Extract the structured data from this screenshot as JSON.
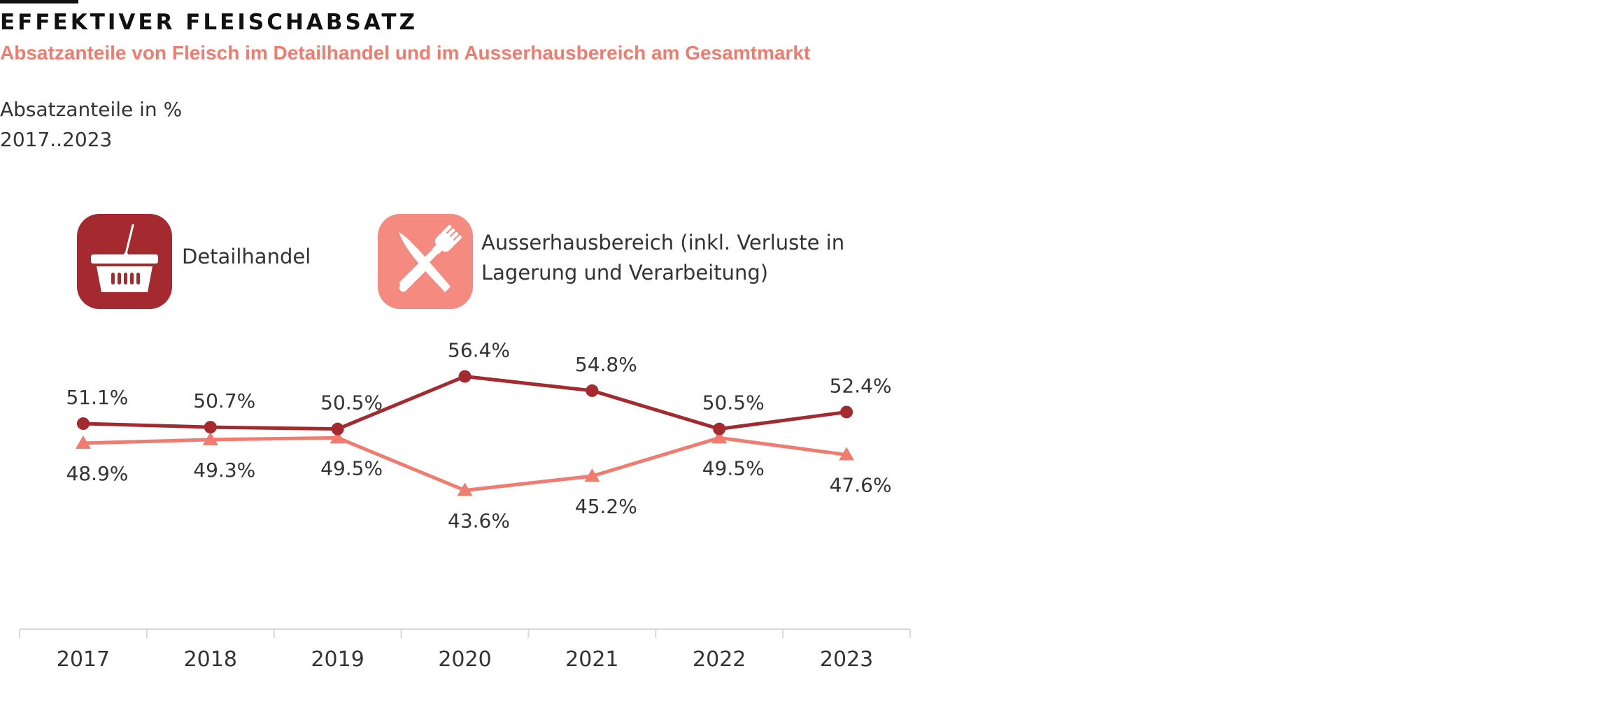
{
  "header": {
    "title": "EFFEKTIVER FLEISCHABSATZ",
    "subtitle": "Absatzanteile von Fleisch im Detailhandel und im Ausserhausbereich am Gesamtmarkt",
    "unit_line": "Absatzanteile in %",
    "range_line": "2017..2023"
  },
  "legend": {
    "items": [
      {
        "label": "Detailhandel",
        "icon": "shopping-basket-icon",
        "color": "#a52a2f"
      },
      {
        "label": "Ausserhausbereich (inkl. Verluste in Lagerung und Verarbeitung)",
        "icon": "knife-fork-icon",
        "color": "#f48a80"
      }
    ]
  },
  "chart_data": {
    "type": "line",
    "categories": [
      "2017",
      "2018",
      "2019",
      "2020",
      "2021",
      "2022",
      "2023"
    ],
    "series": [
      {
        "name": "Detailhandel",
        "values": [
          51.1,
          50.7,
          50.5,
          56.4,
          54.8,
          50.5,
          52.4
        ],
        "labels": [
          "51.1%",
          "50.7%",
          "50.5%",
          "56.4%",
          "54.8%",
          "50.5%",
          "52.4%"
        ],
        "color": "#a52a2f",
        "marker": "circle"
      },
      {
        "name": "Ausserhausbereich (inkl. Verluste in Lagerung und Verarbeitung)",
        "values": [
          48.9,
          49.3,
          49.5,
          43.6,
          45.2,
          49.5,
          47.6
        ],
        "labels": [
          "48.9%",
          "49.3%",
          "49.5%",
          "43.6%",
          "45.2%",
          "49.5%",
          "47.6%"
        ],
        "color": "#f07b6e",
        "marker": "triangle"
      }
    ],
    "title": "EFFEKTIVER FLEISCHABSATZ",
    "ylabel": "Absatzanteile in %",
    "xlabel": "",
    "ylim": [
      28,
      61
    ],
    "grid": false
  }
}
